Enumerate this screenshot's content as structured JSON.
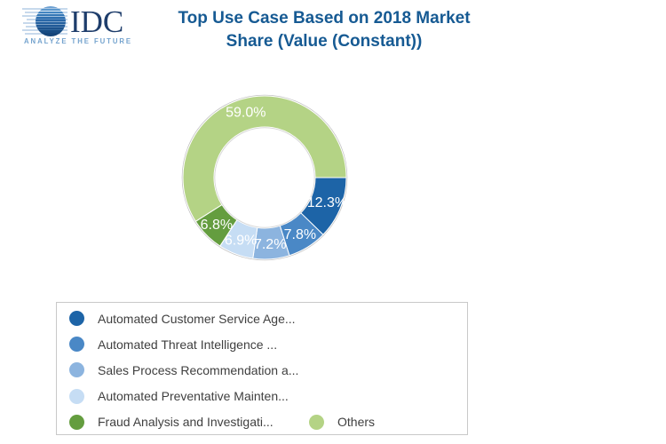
{
  "header": {
    "logo": {
      "brand": "IDC",
      "tagline": "ANALYZE THE FUTURE",
      "brand_color": "#1E3D6B",
      "tagline_color": "#74A3CE"
    },
    "title": "Top Use Case Based on 2018 Market Share (Value (Constant))",
    "title_line1": "Top Use Case Based on 2018 Market",
    "title_line2": "Share (Value (Constant))",
    "title_color": "#165A93"
  },
  "chart_data": {
    "type": "pie",
    "subtype": "donut",
    "title": "Top Use Case Based on 2018 Market Share (Value (Constant))",
    "unit": "%",
    "total": 100.0,
    "direction": "clockwise",
    "start_angle_clockwise_from_top_deg": 90,
    "data_label_color": "#FFFFFF",
    "slices": [
      {
        "label": "Automated Customer Service Age...",
        "value": 12.3,
        "display": "12.3%",
        "color": "#1D64A7"
      },
      {
        "label": "Automated Threat Intelligence ...",
        "value": 7.8,
        "display": "7.8%",
        "color": "#4A88C6"
      },
      {
        "label": "Sales Process Recommendation a...",
        "value": 7.2,
        "display": "7.2%",
        "color": "#8CB4DF"
      },
      {
        "label": "Automated Preventative Mainten...",
        "value": 6.9,
        "display": "6.9%",
        "color": "#C6DDF4"
      },
      {
        "label": "Fraud Analysis and Investigati...",
        "value": 6.8,
        "display": "6.8%",
        "color": "#649D3F"
      },
      {
        "label": "Others",
        "value": 59.0,
        "display": "59.0%",
        "color": "#B4D385"
      }
    ],
    "legend": {
      "position": "bottom-left-box",
      "border_color": "#C9C9C9",
      "text_color": "#3F3F3F"
    }
  }
}
